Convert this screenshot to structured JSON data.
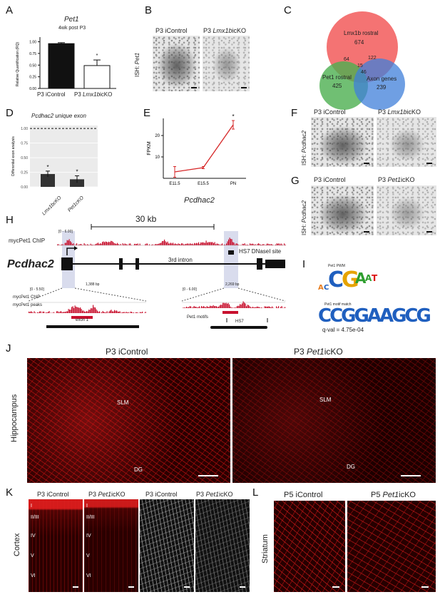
{
  "panels": {
    "A": {
      "letter": "A",
      "title": "Pet1",
      "subtitle": "4wk post P3",
      "ylabel": "Relative Quantification (RQ)",
      "categories": [
        "P3 iControl",
        "P3 Lmx1bicKO"
      ],
      "cat2_prefix": "P3 ",
      "cat2_italic": "Lmx1b",
      "cat2_suffix": "icKO",
      "star": "*",
      "yticks": [
        "0.00",
        "0.25",
        "0.50",
        "0.75",
        "1.00"
      ]
    },
    "B": {
      "letter": "B",
      "col1": "P3 iControl",
      "col2_prefix": "P3 ",
      "col2_italic": "Lmx1b",
      "col2_suffix": "icKO",
      "side_prefix": "ISH: ",
      "side_italic": "Pet1"
    },
    "C": {
      "letter": "C",
      "red_label": "Lmx1b rostral",
      "red_count": "674",
      "green_label": "Pet1 rostral",
      "green_count": "425",
      "blue_label": "Axon genes",
      "blue_count": "239",
      "rg": "64",
      "rb": "122",
      "gb": "46",
      "center": "15"
    },
    "D": {
      "letter": "D",
      "title": "Pcdhac2 unique exon",
      "ylabel": "Differential exon analysis",
      "categories": [
        "Lmx1bcKO",
        "Pet1cKO"
      ],
      "yticks": [
        "0.00",
        "0.25",
        "0.50",
        "0.75",
        "1.00"
      ],
      "star": "*"
    },
    "E": {
      "letter": "E",
      "ylabel": "FPKM",
      "xlabel": "Pcdhac2",
      "categories": [
        "E11.5",
        "E15.5",
        "PN"
      ],
      "yticks": [
        "10",
        "20"
      ],
      "star": "*"
    },
    "F": {
      "letter": "F",
      "col1": "P3 iControl",
      "col2_prefix": "P3 ",
      "col2_italic": "Lmx1b",
      "col2_suffix": "icKO",
      "side_prefix": "ISH: ",
      "side_italic": "Pcdhac2"
    },
    "G": {
      "letter": "G",
      "col1": "P3 iControl",
      "col2_prefix": "P3 ",
      "col2_italic": "Pet1",
      "col2_suffix": "icKO",
      "side_prefix": "ISH: ",
      "side_italic": "Pcdhac2"
    },
    "H": {
      "letter": "H",
      "scale": "30 kb",
      "chip_label": "mycPet1 ChIP",
      "chip_range": "[0 - 6.00]",
      "gene": "Pcdhac2",
      "hs7_label": "HS7 DNaseI site",
      "intron": "3rd intron",
      "left_range": "[0 - 5.50]",
      "left_bp": "1,388 bp",
      "left_chip": "mycPet1 ChIP",
      "left_peaks": "mycPet1 peaks",
      "left_feature": "exon 1",
      "right_range": "[0 - 6.00]",
      "right_bp": "2,269 bp",
      "right_motifs": "Pet1 motifs",
      "right_feature": "HS7"
    },
    "I": {
      "letter": "I",
      "pwm": "Pet1 PWM",
      "match": "Pet1 motif match",
      "qval": "q-val = 4.75e-04",
      "motif_seq": "CCGGAAGCG"
    },
    "J": {
      "letter": "J",
      "col1": "P3 iControl",
      "col2_prefix": "P3 ",
      "col2_italic": "Pet1",
      "col2_suffix": "icKO",
      "side": "Hippocampus",
      "slm": "SLM",
      "dg": "DG"
    },
    "K": {
      "letter": "K",
      "cols": [
        {
          "p": "P3 iControl",
          "i": "",
          "s": ""
        },
        {
          "p": "P3 ",
          "i": "Pet1",
          "s": "icKO"
        },
        {
          "p": "P3 iControl",
          "i": "",
          "s": ""
        },
        {
          "p": "P3 ",
          "i": "Pet1",
          "s": "icKO"
        }
      ],
      "side": "Cortex",
      "layers": [
        "I",
        "II/III",
        "IV",
        "V",
        "VI"
      ]
    },
    "L": {
      "letter": "L",
      "col1": "P5 iControl",
      "col2_prefix": "P5 ",
      "col2_italic": "Pet1",
      "col2_suffix": "icKO",
      "side": "Striatum"
    }
  },
  "chart_data": [
    {
      "type": "bar",
      "title": "Pet1",
      "subtitle": "4wk post P3",
      "categories": [
        "P3 iControl",
        "P3 Lmx1bicKO"
      ],
      "values": [
        0.96,
        0.49
      ],
      "errors": [
        0.02,
        0.12
      ],
      "ylabel": "Relative Quantification (RQ)",
      "ylim": [
        0,
        1.1
      ]
    },
    {
      "type": "bar",
      "title": "Pcdhac2 unique exon",
      "categories": [
        "Lmx1bcKO",
        "Pet1cKO"
      ],
      "values": [
        0.22,
        0.13
      ],
      "errors": [
        0.05,
        0.06
      ],
      "ylabel": "Differential exon analysis",
      "ylim": [
        0,
        1.05
      ],
      "reference_line": 1.0
    },
    {
      "type": "line",
      "xlabel": "Pcdhac2",
      "ylabel": "FPKM",
      "categories": [
        "E11.5",
        "E15.5",
        "PN"
      ],
      "values": [
        3,
        5,
        25
      ],
      "errors": [
        2.5,
        0.5,
        2
      ],
      "ylim": [
        0,
        28
      ],
      "color": "#d62728"
    }
  ],
  "colors": {
    "red": "#d62728",
    "venn_red": "#f25a5a",
    "venn_green": "#4caf50",
    "venn_blue": "#3f7fd9",
    "track": "#c8102e"
  }
}
